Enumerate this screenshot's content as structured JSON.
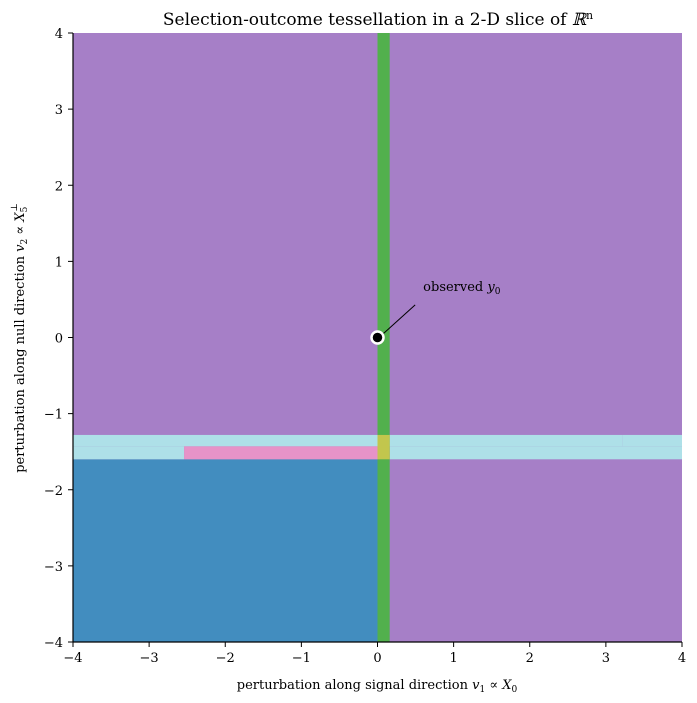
{
  "chart_data": {
    "type": "heatmap",
    "title": "Selection-outcome tessellation in a 2-D slice of ℝⁿ",
    "title_parts": {
      "main": "Selection-outcome tessellation in a 2-D slice of ",
      "symbol": "ℝ",
      "sup": "n"
    },
    "xlabel": "perturbation along signal direction v₁ ∝ X₀",
    "xlabel_parts": {
      "main": "perturbation along signal direction ",
      "var": "v",
      "sub1": "1",
      "rel": " ∝ ",
      "var2": "X",
      "sub2": "0"
    },
    "ylabel": "perturbation along null direction v₂ ∝ X₅⊥",
    "ylabel_parts": {
      "main": "perturbation along null direction ",
      "var": "v",
      "sub1": "2",
      "rel": " ∝ ",
      "var2": "X",
      "sub2": "5",
      "sup2": "⊥"
    },
    "xlim": [
      -4,
      4
    ],
    "ylim": [
      -4,
      4
    ],
    "x_ticks": [
      -4,
      -3,
      -2,
      -1,
      0,
      1,
      2,
      3,
      4
    ],
    "y_ticks": [
      -4,
      -3,
      -2,
      -1,
      0,
      1,
      2,
      3,
      4
    ],
    "grid": false,
    "regions": [
      {
        "color": "#a67fc7",
        "x0": -4,
        "x1": 4,
        "y0": -4,
        "y1": 4
      },
      {
        "color": "#428dbf",
        "x0": -4,
        "x1": 0,
        "y0": -4,
        "y1": -1.6
      },
      {
        "color": "#aee0e8",
        "x0": -4,
        "x1": 3.22,
        "y0": -1.43,
        "y1": -1.28
      },
      {
        "color": "#aee0e8",
        "x0": -4,
        "x1": -2.54,
        "y0": -1.6,
        "y1": -1.43
      },
      {
        "color": "#e693c8",
        "x0": -2.54,
        "x1": 0,
        "y0": -1.6,
        "y1": -1.43
      },
      {
        "color": "#aee0e8",
        "x0": 0.16,
        "x1": 4,
        "y0": -1.6,
        "y1": -1.43
      },
      {
        "color": "#aee0e8",
        "x0": 3.22,
        "x1": 4,
        "y0": -1.43,
        "y1": -1.28
      },
      {
        "color": "#52b04d",
        "x0": 0,
        "x1": 0.16,
        "y0": -4,
        "y1": 4
      },
      {
        "color": "#c2c64d",
        "x0": 0,
        "x1": 0.16,
        "y0": -1.6,
        "y1": -1.28
      }
    ],
    "observed_point": {
      "x": 0,
      "y": 0
    },
    "annotation": {
      "text_main": "observed ",
      "var": "y",
      "sub": "0",
      "text": "observed y₀",
      "x": 0.6,
      "y": 0.6
    }
  }
}
